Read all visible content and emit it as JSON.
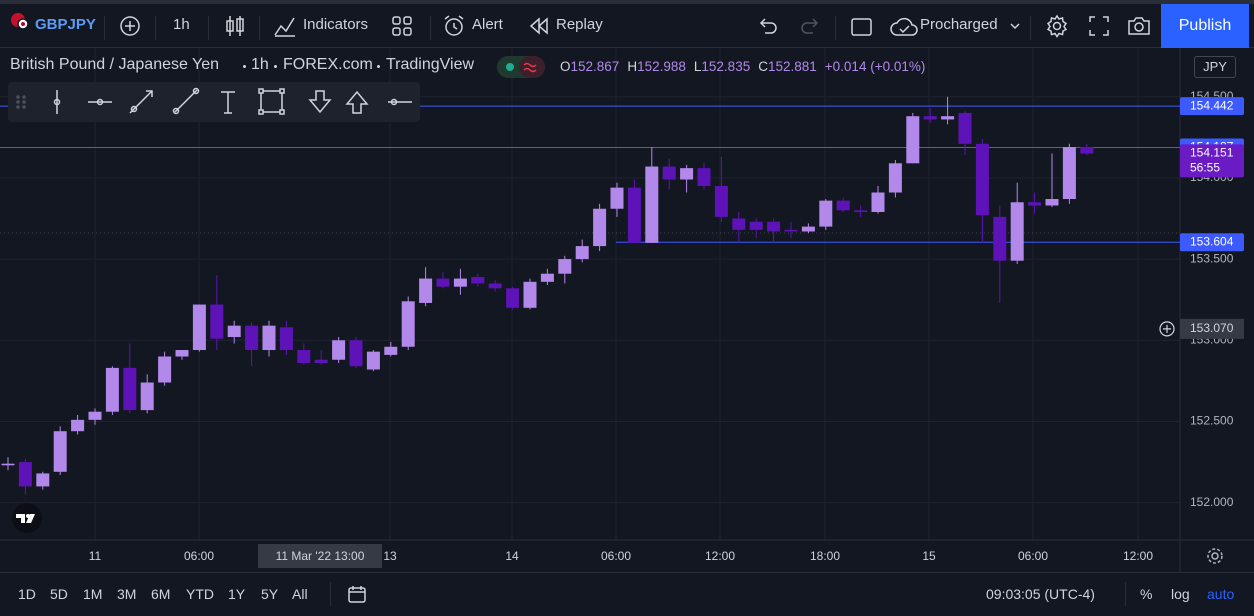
{
  "toolbar": {
    "symbol": "GBPJPY",
    "interval": "1h",
    "indicators": "Indicators",
    "alert": "Alert",
    "replay": "Replay",
    "layout_name": "Procharged",
    "publish": "Publish"
  },
  "legend": {
    "name": "British Pound / Japanese Yen",
    "interval": "1h",
    "exchange": "FOREX.com",
    "source": "TradingView",
    "ohlc": [
      {
        "label": "O",
        "value": 152.867
      },
      {
        "label": "H",
        "value": 152.988
      },
      {
        "label": "L",
        "value": 152.835
      },
      {
        "label": "C",
        "value": 152.881
      }
    ],
    "change": "+0.014 (+0.01%)"
  },
  "currency": "JPY",
  "chart_data": {
    "type": "candlestick",
    "open": [
      152.23,
      152.25,
      152.1,
      152.19,
      152.44,
      152.51,
      152.56,
      152.83,
      152.57,
      152.74,
      152.9,
      152.94,
      153.22,
      153.02,
      153.09,
      152.94,
      153.08,
      152.94,
      152.88,
      152.88,
      153.0,
      152.82,
      152.91,
      152.96,
      153.23,
      153.38,
      153.33,
      153.39,
      153.35,
      153.32,
      153.2,
      153.36,
      153.41,
      153.5,
      153.58,
      153.81,
      153.94,
      153.6,
      154.07,
      153.99,
      154.06,
      153.95,
      153.75,
      153.73,
      153.73,
      153.68,
      153.67,
      153.7,
      153.86,
      153.8,
      153.79,
      153.91,
      154.09,
      154.38,
      154.36,
      154.4,
      154.21,
      153.76,
      153.49,
      153.85,
      153.83,
      153.87,
      154.19
    ],
    "high": [
      152.28,
      152.27,
      152.19,
      152.47,
      152.54,
      152.58,
      152.84,
      152.98,
      152.79,
      152.93,
      152.94,
      153.22,
      153.4,
      153.12,
      153.11,
      153.12,
      153.12,
      152.98,
      152.94,
      153.02,
      153.02,
      152.94,
      152.99,
      153.27,
      153.45,
      153.42,
      153.44,
      153.41,
      153.37,
      153.33,
      153.38,
      153.44,
      153.52,
      153.62,
      153.84,
      153.97,
      153.99,
      154.19,
      154.12,
      154.08,
      154.09,
      154.13,
      153.79,
      153.75,
      153.75,
      153.73,
      153.72,
      153.87,
      153.88,
      153.83,
      153.95,
      154.11,
      154.4,
      154.43,
      154.5,
      154.41,
      154.24,
      153.83,
      153.97,
      153.91,
      154.15,
      154.21,
      154.21
    ],
    "low": [
      152.2,
      152.05,
      152.08,
      152.17,
      152.42,
      152.48,
      152.54,
      152.55,
      152.55,
      152.72,
      152.88,
      152.93,
      152.94,
      152.98,
      152.84,
      152.9,
      152.91,
      152.85,
      152.85,
      152.86,
      152.83,
      152.81,
      152.9,
      152.94,
      153.21,
      153.32,
      153.28,
      153.33,
      153.3,
      153.19,
      153.19,
      153.34,
      153.35,
      153.48,
      153.55,
      153.76,
      153.6,
      153.6,
      153.93,
      153.91,
      153.93,
      153.73,
      153.61,
      153.63,
      153.6,
      153.63,
      153.66,
      153.68,
      153.79,
      153.76,
      153.78,
      153.88,
      154.09,
      154.34,
      154.33,
      154.14,
      153.6,
      153.23,
      153.47,
      153.78,
      153.82,
      153.84,
      154.14
    ],
    "close": [
      152.24,
      152.1,
      152.18,
      152.44,
      152.51,
      152.56,
      152.83,
      152.57,
      152.74,
      152.9,
      152.94,
      153.22,
      153.01,
      153.09,
      152.94,
      153.09,
      152.94,
      152.86,
      152.86,
      153.0,
      152.84,
      152.93,
      152.96,
      153.24,
      153.38,
      153.33,
      153.38,
      153.35,
      153.32,
      153.2,
      153.36,
      153.41,
      153.5,
      153.58,
      153.81,
      153.94,
      153.6,
      154.07,
      153.99,
      154.06,
      153.95,
      153.76,
      153.68,
      153.68,
      153.67,
      153.67,
      153.7,
      153.86,
      153.8,
      153.79,
      153.91,
      154.09,
      154.38,
      154.36,
      154.38,
      154.21,
      153.77,
      153.49,
      153.85,
      153.83,
      153.87,
      154.19,
      154.15
    ],
    "up_color": "#b388eb",
    "down_color": "#5e13b8",
    "ylim": [
      151.77,
      154.8
    ],
    "yticks": [
      {
        "value": 152,
        "label": "152.000"
      },
      {
        "value": 152.5,
        "label": "152.500"
      },
      {
        "value": 153,
        "label": "153.000"
      },
      {
        "value": 153.5,
        "label": "153.500"
      },
      {
        "value": 154,
        "label": "154.000"
      },
      {
        "value": 154.5,
        "label": "154.500"
      }
    ],
    "x_labels": [
      "11",
      "06:00",
      "13",
      "14",
      "06:00",
      "12:00",
      "18:00",
      "15",
      "06:00",
      "12:00"
    ],
    "grid": true,
    "levels": [
      154.442,
      154.187,
      153.604
    ],
    "level_color": "#3d5afe",
    "last_price": 154.151,
    "countdown": "56:55",
    "last_color": "#6a1bc4",
    "crosshair_time": "11 Mar '22 13:00",
    "crosshair_price": {
      "value": 153.07,
      "label": "153.070"
    }
  },
  "bottom_bar": {
    "ranges": [
      "1D",
      "5D",
      "1M",
      "3M",
      "6M",
      "YTD",
      "1Y",
      "5Y",
      "All"
    ],
    "clock": "09:03:05 (UTC-4)",
    "percent": "%",
    "log": "log",
    "auto": "auto"
  }
}
